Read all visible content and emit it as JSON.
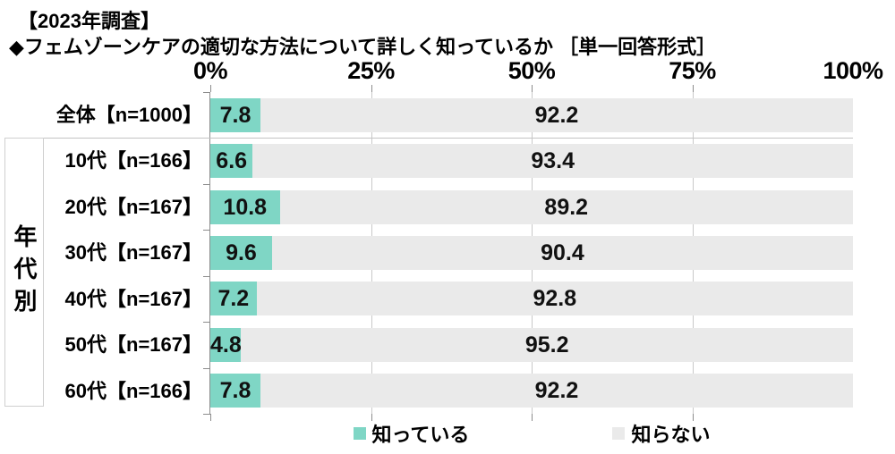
{
  "header": {
    "title": "【2023年調査】",
    "subtitle": "◆フェムゾーンケアの適切な方法について詳しく知っているか ［単一回答形式］"
  },
  "group": {
    "label": "年代別"
  },
  "axis": {
    "tick_labels": [
      "0%",
      "25%",
      "50%",
      "75%",
      "100%"
    ]
  },
  "legend": [
    {
      "label": "知っている",
      "color": "#7fd6c5"
    },
    {
      "label": "知らない",
      "color": "#eaeaea"
    }
  ],
  "colors": {
    "know": "#7fd6c5",
    "not_know": "#eaeaea",
    "gridline": "#c9c9c9",
    "axis": "#8c8c8c"
  },
  "chart_data": {
    "type": "bar",
    "orientation": "horizontal",
    "stacked": true,
    "title": "フェムゾーンケアの適切な方法について詳しく知っているか（2023年調査・単一回答形式）",
    "categories": [
      "全体【n=1000】",
      "10代【n=166】",
      "20代【n=167】",
      "30代【n=167】",
      "40代【n=167】",
      "50代【n=167】",
      "60代【n=166】"
    ],
    "series": [
      {
        "name": "知っている",
        "values": [
          7.8,
          6.6,
          10.8,
          9.6,
          7.2,
          4.8,
          7.8
        ]
      },
      {
        "name": "知らない",
        "values": [
          92.2,
          93.4,
          89.2,
          90.4,
          92.8,
          95.2,
          92.2
        ]
      }
    ],
    "xlim": [
      0,
      100
    ],
    "x_tick_interval": 25,
    "grid": true,
    "legend_position": "bottom",
    "group_annotation": {
      "label": "年代別",
      "applies_to_categories": [
        1,
        2,
        3,
        4,
        5,
        6
      ]
    }
  }
}
